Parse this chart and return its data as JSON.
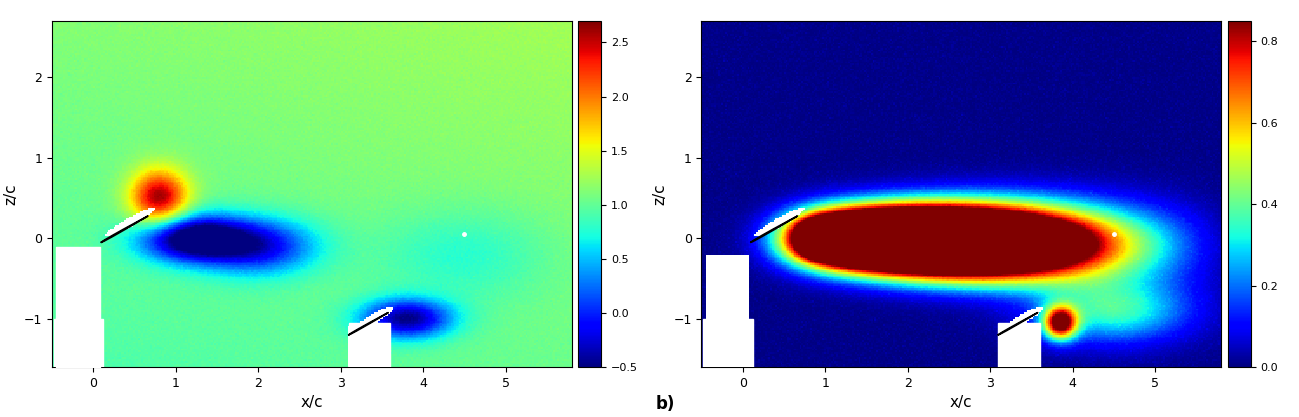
{
  "fig_width": 12.99,
  "fig_height": 4.17,
  "dpi": 100,
  "left_panel": {
    "xlabel": "x/c",
    "ylabel": "z/c",
    "xlim": [
      -0.5,
      5.8
    ],
    "ylim": [
      -1.6,
      2.7
    ],
    "xticks": [
      0,
      1,
      2,
      3,
      4,
      5
    ],
    "yticks": [
      -1,
      0,
      1,
      2
    ],
    "cmap": "jet",
    "vmin": -0.5,
    "vmax": 2.7,
    "colorbar_ticks": [
      -0.5,
      0,
      0.5,
      1,
      1.5,
      2,
      2.5
    ],
    "label": ""
  },
  "right_panel": {
    "xlabel": "x/c",
    "ylabel": "z/c",
    "xlim": [
      -0.5,
      5.8
    ],
    "ylim": [
      -1.6,
      2.7
    ],
    "xticks": [
      0,
      1,
      2,
      3,
      4,
      5
    ],
    "yticks": [
      -1,
      0,
      1,
      2
    ],
    "cmap": "jet",
    "vmin": 0.0,
    "vmax": 0.85,
    "colorbar_ticks": [
      0,
      0.2,
      0.4,
      0.6,
      0.8
    ],
    "label": "b)"
  },
  "background_color": "#ffffff",
  "seed": 42
}
